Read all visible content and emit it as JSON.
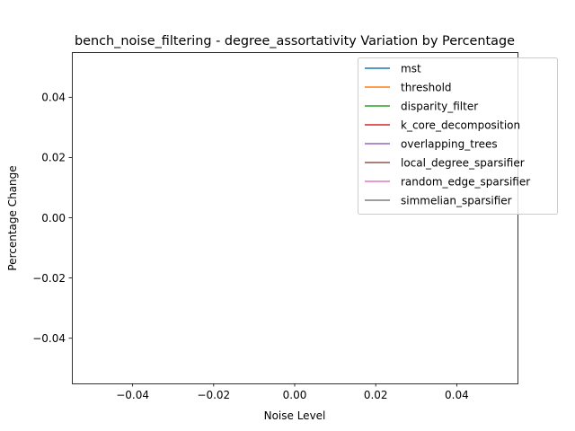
{
  "chart_data": {
    "type": "line",
    "title": "bench_noise_filtering - degree_assortativity Variation by Percentage",
    "xlabel": "Noise Level",
    "ylabel": "Percentage Change",
    "xlim": [
      -0.055,
      0.055
    ],
    "ylim": [
      -0.055,
      0.055
    ],
    "x_ticks": [
      -0.04,
      -0.02,
      0.0,
      0.02,
      0.04
    ],
    "x_tick_labels": [
      "−0.04",
      "−0.02",
      "0.00",
      "0.02",
      "0.04"
    ],
    "y_ticks": [
      0.04,
      0.02,
      0.0,
      -0.02,
      -0.04
    ],
    "y_tick_labels": [
      "0.04",
      "0.02",
      "0.00",
      "−0.02",
      "−0.04"
    ],
    "grid": false,
    "legend_position": "top-right",
    "series": [
      {
        "name": "mst",
        "color": "#1f77b4",
        "x": [],
        "y": []
      },
      {
        "name": "threshold",
        "color": "#ff7f0e",
        "x": [],
        "y": []
      },
      {
        "name": "disparity_filter",
        "color": "#2ca02c",
        "x": [],
        "y": []
      },
      {
        "name": "k_core_decomposition",
        "color": "#d62728",
        "x": [],
        "y": []
      },
      {
        "name": "overlapping_trees",
        "color": "#9467bd",
        "x": [],
        "y": []
      },
      {
        "name": "local_degree_sparsifier",
        "color": "#8c564b",
        "x": [],
        "y": []
      },
      {
        "name": "random_edge_sparsifier",
        "color": "#e377c2",
        "x": [],
        "y": []
      },
      {
        "name": "simmelian_sparsifier",
        "color": "#7f7f7f",
        "x": [],
        "y": []
      }
    ]
  }
}
